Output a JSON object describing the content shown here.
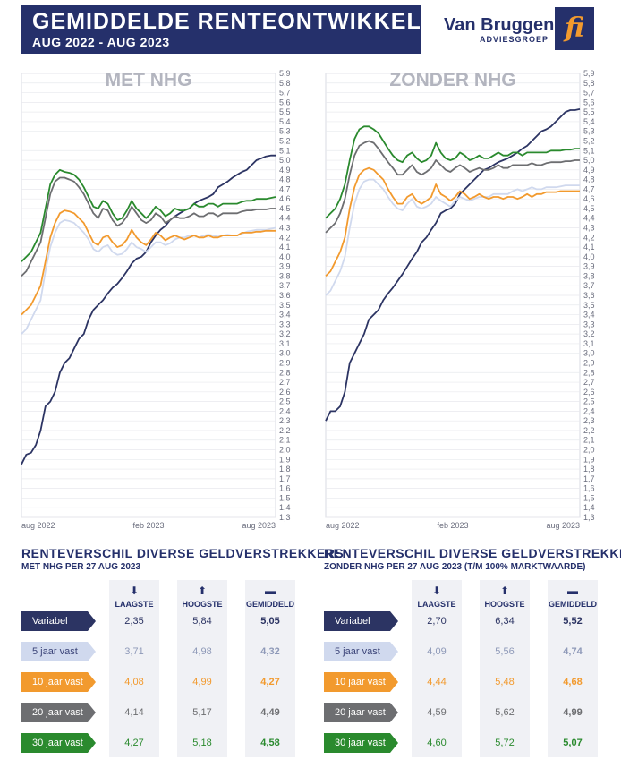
{
  "header": {
    "title": "GEMIDDELDE RENTEONTWIKKELING",
    "subtitle": "AUG 2022 - AUG 2023"
  },
  "brand": {
    "name": "Van Bruggen",
    "sub": "ADVIESGROEP",
    "badge": "fi"
  },
  "colors": {
    "navy": "#25306b",
    "variabel": "#2c3463",
    "5jaar": "#d0d9ee",
    "10jaar": "#f29a2e",
    "20jaar": "#6d6e71",
    "30jaar": "#2a8a2e"
  },
  "chart_data": [
    {
      "type": "line",
      "title": "MET NHG",
      "ylim": [
        1.3,
        5.9
      ],
      "yticks": [
        "5,9",
        "5,8",
        "5,7",
        "5,6",
        "5,5",
        "5,4",
        "5,3",
        "5,2",
        "5,1",
        "5,0",
        "4,9",
        "4,8",
        "4,7",
        "4,6",
        "4,5",
        "4,4",
        "4,3",
        "4,2",
        "4,1",
        "4,0",
        "3,9",
        "3,8",
        "3,7",
        "3,6",
        "3,5",
        "3,4",
        "3,3",
        "3,2",
        "3,1",
        "3,0",
        "2,9",
        "2,8",
        "2,7",
        "2,6",
        "2,5",
        "2,4",
        "2,3",
        "2,2",
        "2,1",
        "2,0",
        "1,9",
        "1,8",
        "1,7",
        "1,6",
        "1,5",
        "1,4",
        "1,3"
      ],
      "xticks": [
        "aug 2022",
        "feb 2023",
        "aug 2023"
      ],
      "grid": true,
      "x": [
        0,
        1,
        2,
        3,
        4,
        5,
        6,
        7,
        8,
        9,
        10,
        11,
        12,
        13,
        14,
        15,
        16,
        17,
        18,
        19,
        20,
        21,
        22,
        23,
        24,
        25,
        26,
        27,
        28,
        29,
        30,
        31,
        32,
        33,
        34,
        35,
        36,
        37,
        38,
        39,
        40,
        41,
        42,
        43,
        44,
        45,
        46,
        47,
        48,
        49,
        50,
        51,
        52,
        53
      ],
      "series": [
        {
          "name": "Variabel",
          "values": [
            1.85,
            1.95,
            1.97,
            2.05,
            2.2,
            2.45,
            2.5,
            2.6,
            2.8,
            2.9,
            2.95,
            3.05,
            3.15,
            3.2,
            3.35,
            3.45,
            3.5,
            3.55,
            3.62,
            3.68,
            3.72,
            3.78,
            3.85,
            3.93,
            3.98,
            4.0,
            4.05,
            4.15,
            4.22,
            4.28,
            4.32,
            4.38,
            4.42,
            4.45,
            4.48,
            4.5,
            4.55,
            4.58,
            4.6,
            4.62,
            4.65,
            4.72,
            4.75,
            4.78,
            4.82,
            4.85,
            4.88,
            4.9,
            4.95,
            5.0,
            5.02,
            5.04,
            5.05,
            5.05
          ]
        },
        {
          "name": "5 jaar vast",
          "values": [
            3.2,
            3.25,
            3.35,
            3.45,
            3.55,
            3.85,
            4.1,
            4.25,
            4.35,
            4.38,
            4.37,
            4.35,
            4.3,
            4.25,
            4.18,
            4.08,
            4.05,
            4.1,
            4.12,
            4.05,
            4.02,
            4.03,
            4.08,
            4.15,
            4.1,
            4.08,
            4.05,
            4.1,
            4.15,
            4.15,
            4.12,
            4.14,
            4.18,
            4.2,
            4.2,
            4.22,
            4.22,
            4.2,
            4.22,
            4.23,
            4.22,
            4.21,
            4.22,
            4.23,
            4.22,
            4.22,
            4.24,
            4.26,
            4.27,
            4.28,
            4.28,
            4.28,
            4.29,
            4.3
          ]
        },
        {
          "name": "10 jaar vast",
          "values": [
            3.4,
            3.45,
            3.5,
            3.6,
            3.7,
            3.95,
            4.2,
            4.35,
            4.45,
            4.48,
            4.47,
            4.45,
            4.4,
            4.35,
            4.25,
            4.15,
            4.12,
            4.2,
            4.22,
            4.15,
            4.1,
            4.12,
            4.18,
            4.28,
            4.2,
            4.15,
            4.12,
            4.18,
            4.25,
            4.22,
            4.17,
            4.2,
            4.22,
            4.2,
            4.18,
            4.2,
            4.22,
            4.2,
            4.2,
            4.22,
            4.2,
            4.2,
            4.22,
            4.22,
            4.22,
            4.22,
            4.25,
            4.25,
            4.25,
            4.26,
            4.26,
            4.27,
            4.27,
            4.27
          ]
        },
        {
          "name": "20 jaar vast",
          "values": [
            3.8,
            3.85,
            3.95,
            4.05,
            4.15,
            4.4,
            4.65,
            4.78,
            4.82,
            4.82,
            4.8,
            4.78,
            4.72,
            4.65,
            4.55,
            4.45,
            4.4,
            4.5,
            4.48,
            4.38,
            4.32,
            4.35,
            4.42,
            4.52,
            4.45,
            4.38,
            4.35,
            4.38,
            4.45,
            4.42,
            4.35,
            4.38,
            4.42,
            4.4,
            4.4,
            4.42,
            4.45,
            4.42,
            4.42,
            4.45,
            4.45,
            4.42,
            4.45,
            4.45,
            4.45,
            4.45,
            4.47,
            4.48,
            4.48,
            4.49,
            4.49,
            4.49,
            4.5,
            4.5
          ]
        },
        {
          "name": "30 jaar vast",
          "values": [
            3.95,
            4.0,
            4.05,
            4.15,
            4.25,
            4.5,
            4.75,
            4.85,
            4.9,
            4.88,
            4.87,
            4.85,
            4.8,
            4.72,
            4.62,
            4.52,
            4.5,
            4.58,
            4.55,
            4.45,
            4.38,
            4.4,
            4.48,
            4.58,
            4.5,
            4.45,
            4.4,
            4.45,
            4.52,
            4.48,
            4.42,
            4.45,
            4.5,
            4.48,
            4.48,
            4.5,
            4.55,
            4.52,
            4.52,
            4.55,
            4.55,
            4.52,
            4.55,
            4.55,
            4.55,
            4.55,
            4.57,
            4.58,
            4.58,
            4.6,
            4.6,
            4.6,
            4.61,
            4.62
          ]
        }
      ]
    },
    {
      "type": "line",
      "title": "ZONDER NHG",
      "ylim": [
        1.3,
        5.9
      ],
      "yticks": [
        "5,9",
        "5,8",
        "5,7",
        "5,6",
        "5,5",
        "5,4",
        "5,3",
        "5,2",
        "5,1",
        "5,0",
        "4,9",
        "4,8",
        "4,7",
        "4,6",
        "4,5",
        "4,4",
        "4,3",
        "4,2",
        "4,1",
        "4,0",
        "3,9",
        "3,8",
        "3,7",
        "3,6",
        "3,5",
        "3,4",
        "3,3",
        "3,2",
        "3,1",
        "3,0",
        "2,9",
        "2,8",
        "2,7",
        "2,6",
        "2,5",
        "2,4",
        "2,3",
        "2,2",
        "2,1",
        "2,0",
        "1,9",
        "1,8",
        "1,7",
        "1,6",
        "1,5",
        "1,4",
        "1,3"
      ],
      "xticks": [
        "aug 2022",
        "feb 2023",
        "aug 2023"
      ],
      "grid": true,
      "x": [
        0,
        1,
        2,
        3,
        4,
        5,
        6,
        7,
        8,
        9,
        10,
        11,
        12,
        13,
        14,
        15,
        16,
        17,
        18,
        19,
        20,
        21,
        22,
        23,
        24,
        25,
        26,
        27,
        28,
        29,
        30,
        31,
        32,
        33,
        34,
        35,
        36,
        37,
        38,
        39,
        40,
        41,
        42,
        43,
        44,
        45,
        46,
        47,
        48,
        49,
        50,
        51,
        52,
        53
      ],
      "series": [
        {
          "name": "Variabel",
          "values": [
            2.3,
            2.4,
            2.4,
            2.45,
            2.6,
            2.9,
            3.0,
            3.1,
            3.2,
            3.35,
            3.4,
            3.45,
            3.55,
            3.62,
            3.68,
            3.75,
            3.82,
            3.9,
            3.98,
            4.05,
            4.15,
            4.2,
            4.28,
            4.35,
            4.45,
            4.48,
            4.5,
            4.55,
            4.65,
            4.7,
            4.75,
            4.8,
            4.85,
            4.9,
            4.92,
            4.95,
            4.98,
            5.0,
            5.02,
            5.05,
            5.08,
            5.12,
            5.15,
            5.2,
            5.25,
            5.3,
            5.32,
            5.35,
            5.4,
            5.45,
            5.5,
            5.52,
            5.52,
            5.53
          ]
        },
        {
          "name": "5 jaar vast",
          "values": [
            3.6,
            3.65,
            3.75,
            3.85,
            4.0,
            4.3,
            4.55,
            4.7,
            4.78,
            4.8,
            4.8,
            4.75,
            4.7,
            4.62,
            4.55,
            4.5,
            4.48,
            4.55,
            4.6,
            4.52,
            4.5,
            4.52,
            4.55,
            4.62,
            4.58,
            4.55,
            4.52,
            4.58,
            4.62,
            4.6,
            4.58,
            4.6,
            4.62,
            4.62,
            4.62,
            4.65,
            4.65,
            4.65,
            4.65,
            4.68,
            4.7,
            4.68,
            4.7,
            4.72,
            4.7,
            4.7,
            4.72,
            4.72,
            4.72,
            4.73,
            4.74,
            4.74,
            4.74,
            4.74
          ]
        },
        {
          "name": "10 jaar vast",
          "values": [
            3.8,
            3.85,
            3.95,
            4.05,
            4.2,
            4.5,
            4.72,
            4.85,
            4.9,
            4.92,
            4.9,
            4.85,
            4.8,
            4.7,
            4.62,
            4.55,
            4.55,
            4.62,
            4.65,
            4.58,
            4.55,
            4.58,
            4.62,
            4.75,
            4.65,
            4.62,
            4.58,
            4.62,
            4.68,
            4.65,
            4.6,
            4.62,
            4.65,
            4.62,
            4.6,
            4.62,
            4.62,
            4.6,
            4.62,
            4.62,
            4.6,
            4.62,
            4.65,
            4.62,
            4.65,
            4.65,
            4.67,
            4.67,
            4.67,
            4.68,
            4.68,
            4.68,
            4.68,
            4.68
          ]
        },
        {
          "name": "20 jaar vast",
          "values": [
            4.25,
            4.3,
            4.35,
            4.45,
            4.6,
            4.85,
            5.05,
            5.15,
            5.18,
            5.2,
            5.18,
            5.12,
            5.05,
            4.98,
            4.92,
            4.85,
            4.85,
            4.9,
            4.95,
            4.88,
            4.85,
            4.88,
            4.92,
            5.0,
            4.95,
            4.9,
            4.88,
            4.92,
            4.95,
            4.92,
            4.88,
            4.9,
            4.92,
            4.9,
            4.9,
            4.92,
            4.95,
            4.92,
            4.92,
            4.95,
            4.95,
            4.95,
            4.95,
            4.97,
            4.95,
            4.95,
            4.97,
            4.98,
            4.98,
            4.98,
            4.99,
            4.99,
            5.0,
            5.0
          ]
        },
        {
          "name": "30 jaar vast",
          "values": [
            4.4,
            4.45,
            4.5,
            4.6,
            4.75,
            5.0,
            5.22,
            5.32,
            5.35,
            5.35,
            5.32,
            5.28,
            5.2,
            5.12,
            5.05,
            5.0,
            4.98,
            5.05,
            5.08,
            5.02,
            4.98,
            5.0,
            5.05,
            5.18,
            5.08,
            5.02,
            5.0,
            5.02,
            5.08,
            5.05,
            5.0,
            5.02,
            5.05,
            5.02,
            5.02,
            5.05,
            5.08,
            5.05,
            5.05,
            5.08,
            5.08,
            5.05,
            5.08,
            5.08,
            5.08,
            5.08,
            5.08,
            5.1,
            5.1,
            5.1,
            5.11,
            5.11,
            5.12,
            5.12
          ]
        }
      ]
    },
    {
      "type": "table",
      "title": "RENTEVERSCHIL DIVERSE GELDVERSTREKKERS",
      "subtitle": "MET NHG PER 27 AUG 2023",
      "columns": [
        "LAAGSTE",
        "HOOGSTE",
        "GEMIDDELD"
      ],
      "rows": [
        {
          "label": "Variabel",
          "values": [
            "2,35",
            "5,84",
            "5,05"
          ]
        },
        {
          "label": "5 jaar vast",
          "values": [
            "3,71",
            "4,98",
            "4,32"
          ]
        },
        {
          "label": "10 jaar vast",
          "values": [
            "4,08",
            "4,99",
            "4,27"
          ]
        },
        {
          "label": "20 jaar vast",
          "values": [
            "4,14",
            "5,17",
            "4,49"
          ]
        },
        {
          "label": "30 jaar vast",
          "values": [
            "4,27",
            "5,18",
            "4,58"
          ]
        }
      ]
    },
    {
      "type": "table",
      "title": "RENTEVERSCHIL DIVERSE GELDVERSTREKKERS",
      "subtitle": "ZONDER NHG PER 27 AUG 2023 (T/M 100% MARKTWAARDE)",
      "columns": [
        "LAAGSTE",
        "HOOGSTE",
        "GEMIDDELD"
      ],
      "rows": [
        {
          "label": "Variabel",
          "values": [
            "2,70",
            "6,34",
            "5,52"
          ]
        },
        {
          "label": "5 jaar vast",
          "values": [
            "4,09",
            "5,56",
            "4,74"
          ]
        },
        {
          "label": "10 jaar vast",
          "values": [
            "4,44",
            "5,48",
            "4,68"
          ]
        },
        {
          "label": "20 jaar vast",
          "values": [
            "4,59",
            "5,62",
            "4,99"
          ]
        },
        {
          "label": "30 jaar vast",
          "values": [
            "4,60",
            "5,72",
            "5,07"
          ]
        }
      ]
    }
  ],
  "icons": [
    "arrow-down-icon",
    "arrow-up-icon",
    "dash-icon"
  ]
}
